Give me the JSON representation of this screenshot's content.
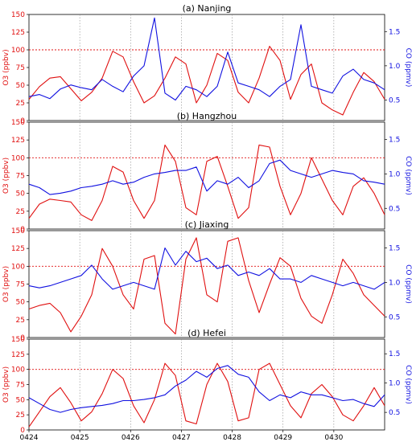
{
  "colors": {
    "o3": "#e01010",
    "co": "#1010e0",
    "threshold": "#e01010",
    "grid": "#888888"
  },
  "chart_data": [
    {
      "type": "line",
      "title": "(a) Nanjing",
      "ylabel_left": "O$_3$ (ppbv)",
      "ylabel_left_text": "O3 (ppbv)",
      "ylabel_right": "CO (ppmv)",
      "ylim_left": [
        0,
        150
      ],
      "ylim_right": [
        0.2,
        1.75
      ],
      "yticks_left": [
        "0",
        "25",
        "50",
        "75",
        "100",
        "125",
        "150"
      ],
      "yticks_right": [
        "0.5",
        "1.0",
        "1.5"
      ],
      "threshold": 100,
      "series": [
        {
          "name": "O3",
          "axis": "left",
          "values": [
            30,
            48,
            60,
            62,
            45,
            28,
            40,
            60,
            98,
            90,
            55,
            25,
            35,
            60,
            90,
            80,
            25,
            50,
            95,
            85,
            40,
            25,
            60,
            105,
            85,
            30,
            65,
            80,
            25,
            15,
            8,
            40,
            68,
            55,
            30
          ]
        },
        {
          "name": "CO",
          "axis": "right",
          "values": [
            0.55,
            0.58,
            0.52,
            0.66,
            0.72,
            0.68,
            0.65,
            0.8,
            0.7,
            0.62,
            0.85,
            1.0,
            1.7,
            0.6,
            0.5,
            0.7,
            0.65,
            0.55,
            0.7,
            1.2,
            0.75,
            0.7,
            0.65,
            0.55,
            0.7,
            0.8,
            1.6,
            0.7,
            0.65,
            0.6,
            0.85,
            0.95,
            0.8,
            0.75,
            0.65
          ]
        }
      ]
    },
    {
      "type": "line",
      "title": "(b) Hangzhou",
      "ylabel_left": "O$_3$ (ppbv)",
      "ylabel_left_text": "O3 (ppbv)",
      "ylabel_right": "CO (ppmv)",
      "ylim_left": [
        0,
        150
      ],
      "ylim_right": [
        0.2,
        1.75
      ],
      "yticks_left": [
        "0",
        "25",
        "50",
        "75",
        "100",
        "125",
        "150"
      ],
      "yticks_right": [
        "0.5",
        "1.0",
        "1.5"
      ],
      "threshold": 100,
      "series": [
        {
          "name": "O3",
          "axis": "left",
          "values": [
            15,
            35,
            42,
            40,
            38,
            20,
            12,
            40,
            88,
            80,
            40,
            15,
            40,
            118,
            95,
            30,
            20,
            95,
            102,
            60,
            15,
            30,
            118,
            115,
            60,
            20,
            50,
            100,
            70,
            40,
            20,
            60,
            72,
            50,
            20
          ]
        },
        {
          "name": "CO",
          "axis": "right",
          "values": [
            0.85,
            0.8,
            0.7,
            0.72,
            0.75,
            0.8,
            0.82,
            0.85,
            0.9,
            0.85,
            0.88,
            0.95,
            1.0,
            1.02,
            1.05,
            1.05,
            1.1,
            0.75,
            0.9,
            0.85,
            0.95,
            0.8,
            0.9,
            1.15,
            1.2,
            1.05,
            1.0,
            0.95,
            1.0,
            1.05,
            1.02,
            1.0,
            0.9,
            0.88,
            0.85
          ]
        }
      ]
    },
    {
      "type": "line",
      "title": "(c) Jiaxing",
      "ylabel_left": "O$_3$ (ppbv)",
      "ylabel_left_text": "O3 (ppbv)",
      "ylabel_right": "CO (ppmv)",
      "ylim_left": [
        0,
        150
      ],
      "ylim_right": [
        0.2,
        1.75
      ],
      "yticks_left": [
        "0",
        "25",
        "50",
        "75",
        "100",
        "125",
        "150"
      ],
      "yticks_right": [
        "0.5",
        "1.0",
        "1.5"
      ],
      "threshold": 100,
      "series": [
        {
          "name": "O3",
          "axis": "left",
          "values": [
            40,
            45,
            48,
            35,
            8,
            30,
            60,
            125,
            100,
            60,
            40,
            110,
            115,
            20,
            5,
            110,
            140,
            60,
            50,
            135,
            140,
            80,
            35,
            75,
            112,
            100,
            55,
            30,
            20,
            60,
            110,
            90,
            60,
            45,
            30
          ]
        },
        {
          "name": "CO",
          "axis": "right",
          "values": [
            0.95,
            0.92,
            0.95,
            1.0,
            1.05,
            1.1,
            1.25,
            1.05,
            0.9,
            0.95,
            1.0,
            0.95,
            0.9,
            1.5,
            1.25,
            1.45,
            1.3,
            1.35,
            1.2,
            1.25,
            1.1,
            1.15,
            1.1,
            1.2,
            1.05,
            1.05,
            1.0,
            1.1,
            1.05,
            1.0,
            0.95,
            1.0,
            0.95,
            0.9,
            1.0
          ]
        }
      ]
    },
    {
      "type": "line",
      "title": "(d) Hefei",
      "ylabel_left": "O$_3$ (ppbv)",
      "ylabel_left_text": "O3 (ppbv)",
      "ylabel_right": "CO (ppmv)",
      "ylim_left": [
        0,
        150
      ],
      "ylim_right": [
        0.2,
        1.75
      ],
      "yticks_left": [
        "0",
        "25",
        "50",
        "75",
        "100",
        "125",
        "150"
      ],
      "yticks_right": [
        "0.5",
        "1.0",
        "1.5"
      ],
      "threshold": 100,
      "series": [
        {
          "name": "O3",
          "axis": "left",
          "values": [
            5,
            30,
            55,
            70,
            45,
            15,
            30,
            60,
            100,
            85,
            40,
            12,
            50,
            110,
            90,
            15,
            10,
            75,
            110,
            80,
            15,
            20,
            100,
            110,
            75,
            40,
            20,
            60,
            75,
            55,
            25,
            15,
            40,
            70,
            40
          ]
        },
        {
          "name": "CO",
          "axis": "right",
          "values": [
            0.75,
            0.65,
            0.55,
            0.5,
            0.55,
            0.58,
            0.6,
            0.62,
            0.65,
            0.7,
            0.7,
            0.72,
            0.75,
            0.8,
            0.95,
            1.05,
            1.2,
            1.1,
            1.25,
            1.3,
            1.15,
            1.1,
            0.85,
            0.7,
            0.8,
            0.75,
            0.85,
            0.8,
            0.8,
            0.75,
            0.7,
            0.72,
            0.65,
            0.6,
            0.8
          ]
        }
      ]
    }
  ],
  "x_ticks": [
    "0424",
    "0425",
    "0426",
    "0427",
    "0428",
    "0429",
    "0430"
  ]
}
